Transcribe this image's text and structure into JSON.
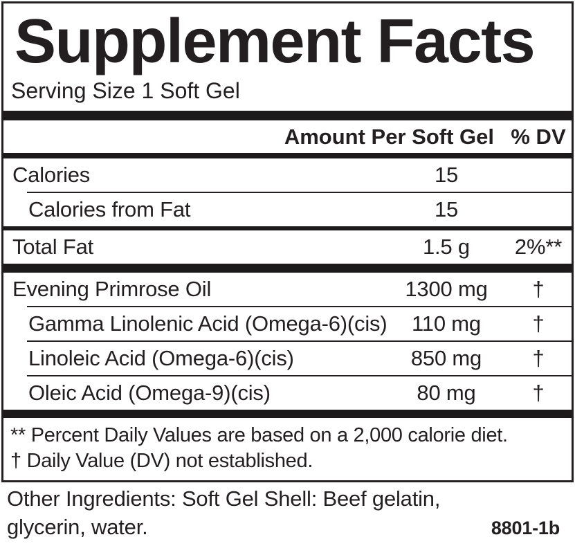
{
  "panel": {
    "title": "Supplement Facts",
    "serving_size": "Serving Size 1 Soft Gel",
    "columns": {
      "amount": "Amount Per Soft Gel",
      "dv": "% DV"
    },
    "rows": [
      {
        "name": "Calories",
        "amount": "15",
        "dv": "",
        "indent": false,
        "sep_after": "hairline"
      },
      {
        "name": "Calories from Fat",
        "amount": "15",
        "dv": "",
        "indent": true,
        "sep_after": "medium"
      },
      {
        "name": "Total Fat",
        "amount": "1.5 g",
        "dv": "2%**",
        "indent": false,
        "sep_after": "thick"
      },
      {
        "name": "Evening Primrose Oil",
        "amount": "1300 mg",
        "dv": "†",
        "indent": false,
        "sep_after": "hairline"
      },
      {
        "name": "Gamma Linolenic Acid (Omega-6)(cis)",
        "amount": "110 mg",
        "dv": "†",
        "indent": true,
        "sep_after": "hairline"
      },
      {
        "name": "Linoleic Acid (Omega-6)(cis)",
        "amount": "850 mg",
        "dv": "†",
        "indent": true,
        "sep_after": "hairline"
      },
      {
        "name": "Oleic Acid (Omega-9)(cis)",
        "amount": "80 mg",
        "dv": "†",
        "indent": true,
        "sep_after": "none"
      }
    ],
    "footnotes": [
      "** Percent Daily Values are based on a 2,000 calorie diet.",
      "† Daily Value (DV) not established."
    ]
  },
  "footer": {
    "other_ingredients_line1": "Other Ingredients: Soft Gel Shell:  Beef gelatin,",
    "other_ingredients_line2": "glycerin, water.",
    "code": "8801-1b"
  },
  "colors": {
    "text": "#231f20",
    "background": "#ffffff",
    "rule": "#1c1a1a"
  }
}
